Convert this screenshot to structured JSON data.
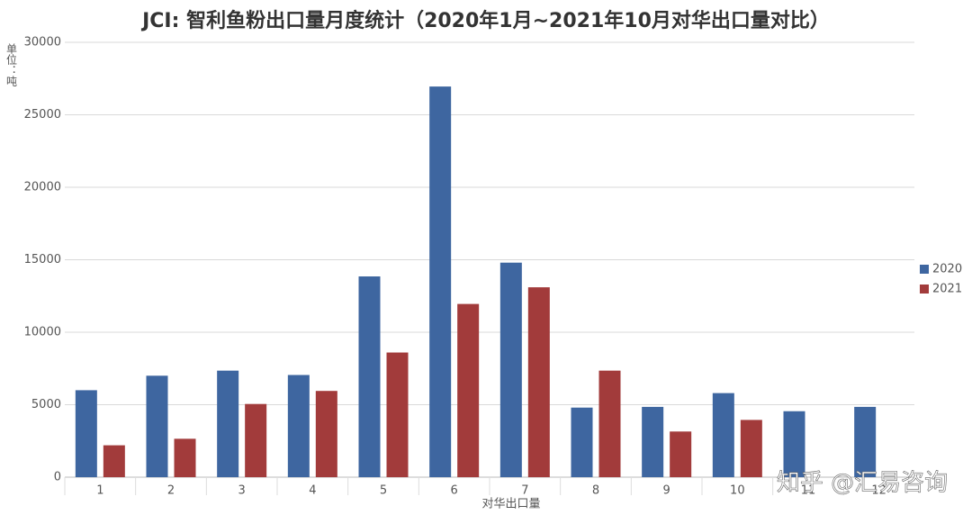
{
  "chart_data": {
    "type": "bar",
    "title": "JCI: 智利鱼粉出口量月度统计（2020年1月~2021年10月对华出口量对比）",
    "y_label": "单位：吨",
    "x_label": "对华出口量",
    "watermark": "知乎 @汇易咨询",
    "categories": [
      "1",
      "2",
      "3",
      "4",
      "5",
      "6",
      "7",
      "8",
      "9",
      "10",
      "11",
      "12"
    ],
    "series": [
      {
        "name": "2020",
        "color": "#3e66a0",
        "values": [
          6000,
          7000,
          7350,
          7050,
          13850,
          26950,
          14800,
          4800,
          4850,
          5800,
          4550,
          4850
        ]
      },
      {
        "name": "2021",
        "color": "#a23b3b",
        "values": [
          2200,
          2650,
          5050,
          5950,
          8600,
          11950,
          13100,
          7350,
          3150,
          3950,
          null,
          null
        ]
      }
    ],
    "ylim": [
      0,
      30000
    ],
    "yticks": [
      0,
      5000,
      10000,
      15000,
      20000,
      25000,
      30000
    ],
    "grid": true,
    "legend": "right"
  }
}
